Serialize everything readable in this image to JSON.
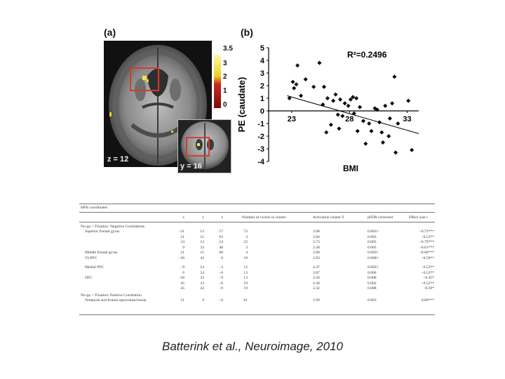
{
  "panel_a": {
    "label": "(a)",
    "main_slice_label": "z = 12",
    "inset_slice_label": "y = 16",
    "colorbar_ticks": [
      "3.5",
      "3",
      "2",
      "1",
      "0"
    ],
    "colorbar_colors": {
      "top": "#fff9a6",
      "mid": "#e8d21e",
      "low": "#cc2a1e",
      "bottom": "#7a0d0d"
    }
  },
  "panel_b": {
    "label": "(b)",
    "chart_data": {
      "type": "scatter",
      "xlabel": "BMI",
      "ylabel": "PE (caudate)",
      "annotation": "R²=0.2496",
      "xlim": [
        21,
        34
      ],
      "ylim": [
        -4,
        5
      ],
      "xticks": [
        23,
        28,
        33
      ],
      "yticks": [
        5,
        4,
        3,
        2,
        1,
        0,
        -1,
        -2,
        -3,
        -4
      ],
      "regression_line": {
        "x": [
          22.6,
          34
        ],
        "y": [
          1.2,
          -1.8
        ]
      },
      "points": [
        [
          22.8,
          1.0
        ],
        [
          23.1,
          2.3
        ],
        [
          23.2,
          1.8
        ],
        [
          23.5,
          3.6
        ],
        [
          23.4,
          2.1
        ],
        [
          23.8,
          1.2
        ],
        [
          24.2,
          2.5
        ],
        [
          24.9,
          1.9
        ],
        [
          25.4,
          3.8
        ],
        [
          25.7,
          0.5
        ],
        [
          25.8,
          1.9
        ],
        [
          26.1,
          1.0
        ],
        [
          26.0,
          -1.7
        ],
        [
          26.4,
          -1.1
        ],
        [
          26.6,
          0.8
        ],
        [
          26.8,
          1.3
        ],
        [
          27.0,
          -0.3
        ],
        [
          27.1,
          -1.4
        ],
        [
          27.2,
          0.9
        ],
        [
          27.4,
          -0.4
        ],
        [
          27.6,
          0.6
        ],
        [
          27.9,
          0.4
        ],
        [
          28.1,
          0.9
        ],
        [
          28.3,
          1.1
        ],
        [
          28.4,
          -0.2
        ],
        [
          28.6,
          1.0
        ],
        [
          28.7,
          -1.6
        ],
        [
          28.9,
          0.3
        ],
        [
          29.2,
          -0.8
        ],
        [
          29.4,
          -2.6
        ],
        [
          29.7,
          -1.0
        ],
        [
          29.9,
          -1.6
        ],
        [
          30.2,
          0.2
        ],
        [
          30.4,
          0.1
        ],
        [
          30.6,
          -0.9
        ],
        [
          30.8,
          -1.7
        ],
        [
          30.9,
          -2.5
        ],
        [
          31.1,
          0.4
        ],
        [
          31.4,
          -2.0
        ],
        [
          31.5,
          -0.6
        ],
        [
          31.7,
          0.6
        ],
        [
          31.9,
          2.7
        ],
        [
          32.0,
          -3.3
        ],
        [
          32.2,
          -1.0
        ],
        [
          33.1,
          0.8
        ],
        [
          33.4,
          -3.1
        ]
      ]
    }
  },
  "table": {
    "title": "MNI coordinates",
    "headers": [
      "x",
      "y",
      "z",
      "Number of voxels in cluster",
      "Activation cluster Z",
      "pFDR corrected",
      "Effect size r"
    ],
    "sections": [
      {
        "heading": "No-go > Fixation: Negative Correlations",
        "rows": [
          {
            "region": "Superior frontal gyrus",
            "cells": [
              "−21",
              "12",
              "57",
              "73",
              "3.98",
              "0.003†",
              "−0.72***"
            ]
          },
          {
            "region": "",
            "cells": [
              "21",
              "15",
              "63",
              "3",
              "3.84",
              "0.003",
              "−0.53**"
            ]
          },
          {
            "region": "",
            "cells": [
              "24",
              "12",
              "54",
              "22",
              "3.73",
              "0.003",
              "−0.79***"
            ]
          },
          {
            "region": "",
            "cells": [
              "9",
              "33",
              "48",
              "3",
              "3.38",
              "0.005",
              "−0.61***"
            ]
          },
          {
            "region": "Middle frontal gyrus",
            "cells": [
              "21",
              "15",
              "60",
              "4",
              "3.90",
              "0.003†",
              "−0.66***"
            ]
          },
          {
            "region": "VLPFC",
            "cells": [
              "−36",
              "42",
              "0",
              "19",
              "3.93",
              "0.008†",
              "−0.59**"
            ]
          },
          {
            "region": "Medial PFC",
            "cells": [
              "−9",
              "54",
              "−3",
              "12",
              "4.47",
              "0.002†",
              "−0.53**"
            ]
          },
          {
            "region": "",
            "cells": [
              "6",
              "54",
              "−6",
              "13",
              "3.87",
              "0.006",
              "−0.52**"
            ]
          },
          {
            "region": "OFC",
            "cells": [
              "−36",
              "33",
              "−9",
              "13",
              "3.56",
              "0.008",
              "−0.45*"
            ]
          },
          {
            "region": "",
            "cells": [
              "45",
              "33",
              "−6",
              "19",
              "4.30",
              "0.002",
              "−0.52**"
            ]
          },
          {
            "region": "",
            "cells": [
              "45",
              "42",
              "−9",
              "19",
              "3.32",
              "0.008",
              "−0.39*"
            ]
          }
        ]
      },
      {
        "heading": "No-go > Fixation: Positive Correlation",
        "rows": [
          {
            "region": "Temporal and frontal operculum/insula",
            "cells": [
              "51",
              "9",
              "−6",
              "81",
              "3.99",
              "0.003",
              "0.80***"
            ]
          }
        ]
      }
    ]
  },
  "citation": "Batterink et al., Neuroimage, 2010"
}
